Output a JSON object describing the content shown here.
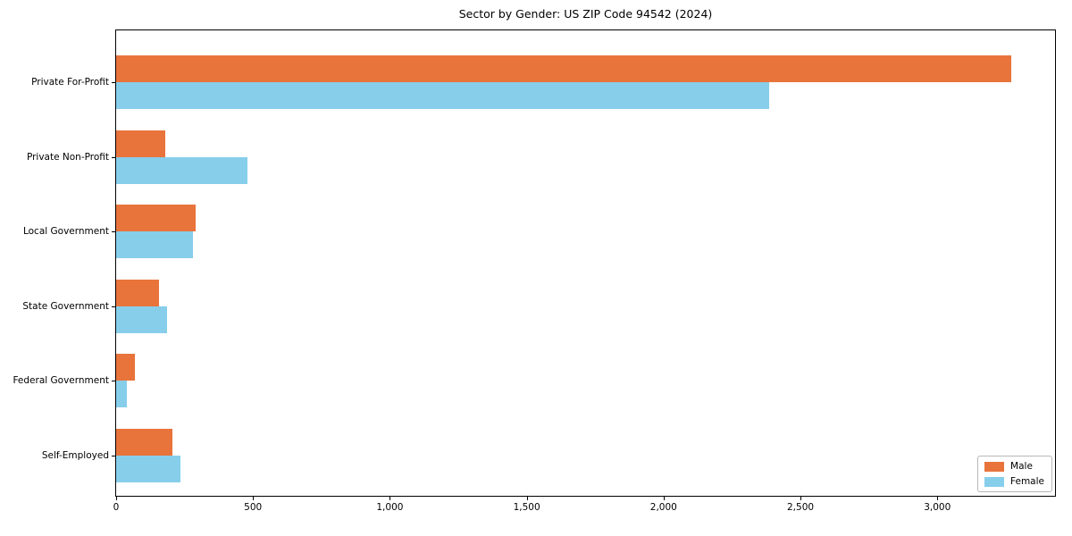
{
  "chart_data": {
    "type": "bar",
    "orientation": "horizontal",
    "title": "Sector by Gender: US ZIP Code 94542 (2024)",
    "xlabel": "",
    "ylabel": "",
    "categories": [
      "Private For-Profit",
      "Private Non-Profit",
      "Local Government",
      "State Government",
      "Federal Government",
      "Self-Employed"
    ],
    "series": [
      {
        "name": "Male",
        "color": "#e8743b",
        "values": [
          3270,
          178,
          292,
          158,
          68,
          205
        ]
      },
      {
        "name": "Female",
        "color": "#87ceeb",
        "values": [
          2386,
          480,
          282,
          185,
          38,
          235
        ]
      }
    ],
    "xlim": [
      0,
      3430
    ],
    "xticks": {
      "values": [
        0,
        500,
        1000,
        1500,
        2000,
        2500,
        3000
      ],
      "labels": [
        "0",
        "500",
        "1,000",
        "1,500",
        "2,000",
        "2,500",
        "3,000"
      ]
    },
    "grid": false,
    "legend": {
      "position": "lower right",
      "entries": [
        "Male",
        "Female"
      ]
    }
  }
}
